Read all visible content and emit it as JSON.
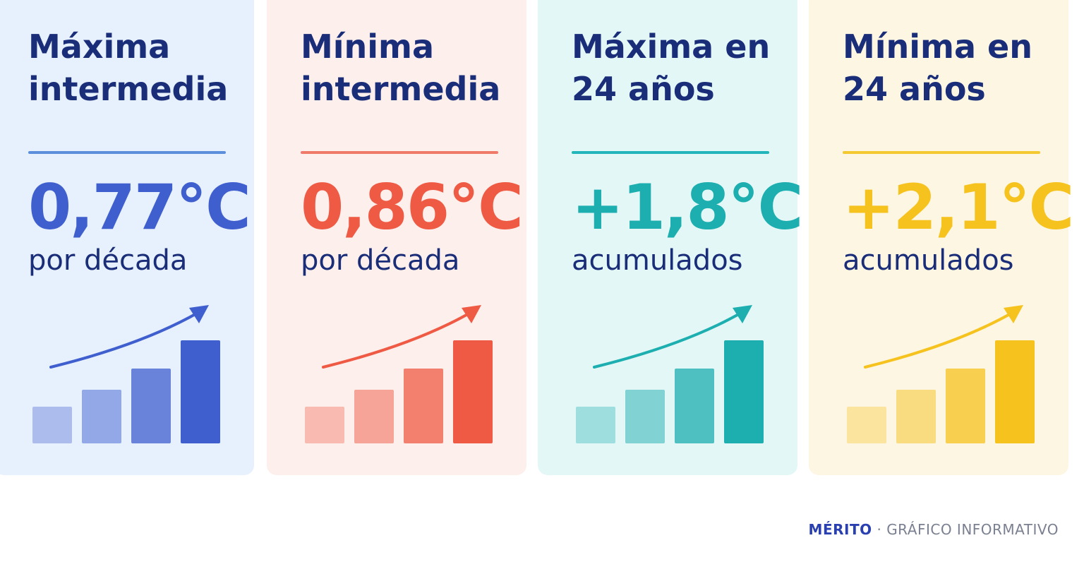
{
  "cards": [
    {
      "title": "Máxima intermedia",
      "value": "0,77°C",
      "subtitle": "por década",
      "color": "#3f5fcf",
      "accent": "#5b8fdc",
      "background": "#e7f0fd"
    },
    {
      "title": "Mínima intermedia",
      "value": "0,86°C",
      "subtitle": "por década",
      "color": "#ef5a45",
      "accent": "#f07a6a",
      "background": "#fdefeb"
    },
    {
      "title": "Máxima en 24 años",
      "value": "+1,8°C",
      "subtitle": "acumulados",
      "color": "#1daeb0",
      "accent": "#22b6ba",
      "background": "#e3f7f7"
    },
    {
      "title": "Mínima en 24 años",
      "value": "+2,1°C",
      "subtitle": "acumulados",
      "color": "#f6c21e",
      "accent": "#f4c930",
      "background": "#fdf6e2"
    }
  ],
  "footer": {
    "brand": "MÉRITO",
    "label": "GRÁFICO INFORMATIVO"
  }
}
